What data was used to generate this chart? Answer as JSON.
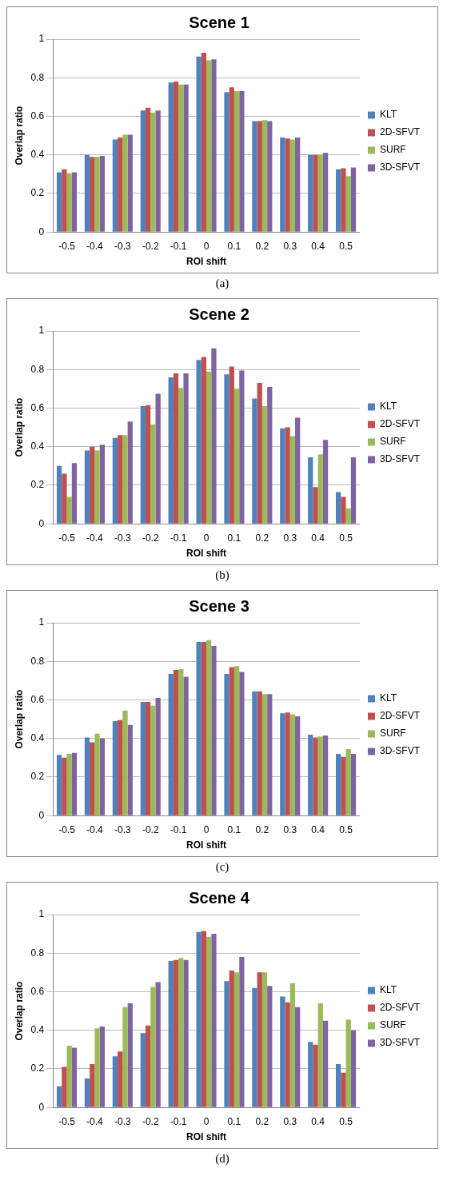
{
  "chart_data": [
    {
      "type": "bar",
      "title": "Scene 1",
      "xlabel": "ROI shift",
      "ylabel": "Overlap ratio",
      "annotations": [
        "(a)"
      ],
      "categories": [
        "-0.5",
        "-0.4",
        "-0.3",
        "-0.2",
        "-0.1",
        "0",
        "0.1",
        "0.2",
        "0.3",
        "0.4",
        "0.5"
      ],
      "ylim": [
        0,
        1
      ],
      "yticks": [
        0,
        0.2,
        0.4,
        0.6,
        0.8,
        1
      ],
      "grid": "y",
      "legend": "right",
      "series": [
        {
          "name": "KLT",
          "color": "#4f81bd",
          "values": [
            0.31,
            0.4,
            0.48,
            0.63,
            0.775,
            0.91,
            0.725,
            0.575,
            0.49,
            0.4,
            0.325
          ]
        },
        {
          "name": "2D-SFVT",
          "color": "#c0504d",
          "values": [
            0.325,
            0.39,
            0.49,
            0.645,
            0.78,
            0.93,
            0.75,
            0.575,
            0.485,
            0.4,
            0.33
          ]
        },
        {
          "name": "SURF",
          "color": "#9bbb59",
          "values": [
            0.305,
            0.39,
            0.505,
            0.62,
            0.765,
            0.89,
            0.73,
            0.58,
            0.48,
            0.4,
            0.29
          ]
        },
        {
          "name": "3D-SFVT",
          "color": "#8064a2",
          "values": [
            0.31,
            0.395,
            0.505,
            0.63,
            0.765,
            0.895,
            0.73,
            0.575,
            0.49,
            0.41,
            0.335
          ]
        }
      ]
    },
    {
      "type": "bar",
      "title": "Scene 2",
      "xlabel": "ROI shift",
      "ylabel": "Overlap ratio",
      "annotations": [
        "(b)"
      ],
      "categories": [
        "-0.5",
        "-0.4",
        "-0.3",
        "-0.2",
        "-0.1",
        "0",
        "0.1",
        "0.2",
        "0.3",
        "0.4",
        "0.5"
      ],
      "ylim": [
        0,
        1
      ],
      "yticks": [
        0,
        0.2,
        0.4,
        0.6,
        0.8,
        1
      ],
      "grid": "y",
      "legend": "right",
      "series": [
        {
          "name": "KLT",
          "color": "#4f81bd",
          "values": [
            0.3,
            0.38,
            0.445,
            0.61,
            0.76,
            0.85,
            0.775,
            0.65,
            0.495,
            0.345,
            0.165
          ]
        },
        {
          "name": "2D-SFVT",
          "color": "#c0504d",
          "values": [
            0.26,
            0.4,
            0.46,
            0.615,
            0.78,
            0.865,
            0.815,
            0.73,
            0.5,
            0.19,
            0.14
          ]
        },
        {
          "name": "SURF",
          "color": "#9bbb59",
          "values": [
            0.14,
            0.38,
            0.46,
            0.515,
            0.705,
            0.79,
            0.7,
            0.61,
            0.455,
            0.36,
            0.08
          ]
        },
        {
          "name": "3D-SFVT",
          "color": "#8064a2",
          "values": [
            0.315,
            0.41,
            0.53,
            0.675,
            0.78,
            0.91,
            0.795,
            0.71,
            0.55,
            0.435,
            0.345
          ]
        }
      ]
    },
    {
      "type": "bar",
      "title": "Scene 3",
      "xlabel": "ROI shift",
      "ylabel": "Overlap ratio",
      "annotations": [
        "(c)"
      ],
      "categories": [
        "-0.5",
        "-0.4",
        "-0.3",
        "-0.2",
        "-0.1",
        "0",
        "0.1",
        "0.2",
        "0.3",
        "0.4",
        "0.5"
      ],
      "ylim": [
        0,
        1
      ],
      "yticks": [
        0,
        0.2,
        0.4,
        0.6,
        0.8,
        1
      ],
      "grid": "y",
      "legend": "right",
      "series": [
        {
          "name": "KLT",
          "color": "#4f81bd",
          "values": [
            0.315,
            0.405,
            0.49,
            0.59,
            0.735,
            0.9,
            0.735,
            0.645,
            0.53,
            0.42,
            0.32
          ]
        },
        {
          "name": "2D-SFVT",
          "color": "#c0504d",
          "values": [
            0.3,
            0.38,
            0.495,
            0.59,
            0.755,
            0.9,
            0.77,
            0.645,
            0.535,
            0.405,
            0.305
          ]
        },
        {
          "name": "SURF",
          "color": "#9bbb59",
          "values": [
            0.32,
            0.425,
            0.545,
            0.57,
            0.76,
            0.91,
            0.775,
            0.63,
            0.525,
            0.41,
            0.345
          ]
        },
        {
          "name": "3D-SFVT",
          "color": "#8064a2",
          "values": [
            0.325,
            0.4,
            0.47,
            0.61,
            0.72,
            0.88,
            0.745,
            0.63,
            0.515,
            0.415,
            0.32
          ]
        }
      ]
    },
    {
      "type": "bar",
      "title": "Scene 4",
      "xlabel": "ROI shift",
      "ylabel": "Overlap ratio",
      "annotations": [
        "(d)"
      ],
      "categories": [
        "-0.5",
        "-0.4",
        "-0.3",
        "-0.2",
        "-0.1",
        "0",
        "0.1",
        "0.2",
        "0.3",
        "0.4",
        "0.5"
      ],
      "ylim": [
        0,
        1
      ],
      "yticks": [
        0,
        0.2,
        0.4,
        0.6,
        0.8,
        1
      ],
      "grid": "y",
      "legend": "right",
      "series": [
        {
          "name": "KLT",
          "color": "#4f81bd",
          "values": [
            0.11,
            0.15,
            0.265,
            0.385,
            0.76,
            0.91,
            0.655,
            0.62,
            0.575,
            0.34,
            0.225
          ]
        },
        {
          "name": "2D-SFVT",
          "color": "#c0504d",
          "values": [
            0.21,
            0.225,
            0.29,
            0.425,
            0.765,
            0.915,
            0.71,
            0.7,
            0.545,
            0.325,
            0.18
          ]
        },
        {
          "name": "SURF",
          "color": "#9bbb59",
          "values": [
            0.32,
            0.41,
            0.52,
            0.625,
            0.775,
            0.885,
            0.7,
            0.7,
            0.645,
            0.54,
            0.455
          ]
        },
        {
          "name": "3D-SFVT",
          "color": "#8064a2",
          "values": [
            0.31,
            0.42,
            0.54,
            0.65,
            0.765,
            0.9,
            0.78,
            0.63,
            0.52,
            0.45,
            0.4
          ]
        }
      ]
    }
  ]
}
